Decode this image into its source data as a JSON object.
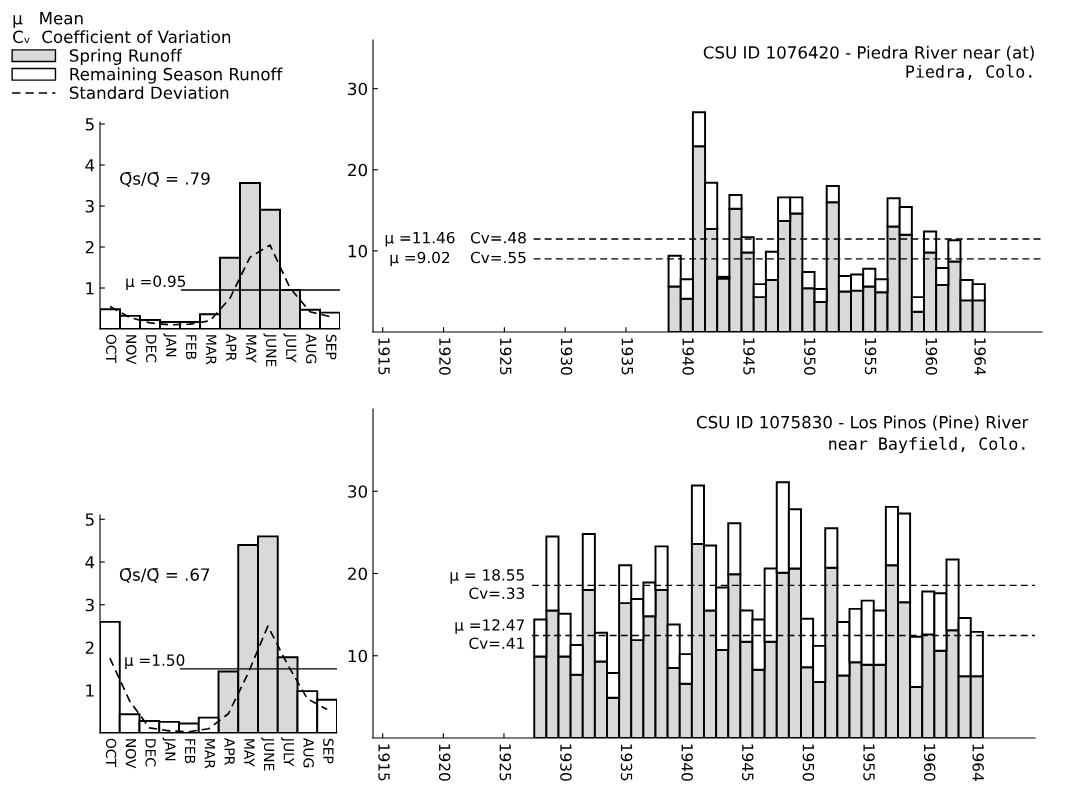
{
  "chart_data": [
    {
      "type": "bar",
      "categories": [
        "OCT",
        "NOV",
        "DEC",
        "JAN",
        "FEB",
        "MAR",
        "APR",
        "MAY",
        "JUNE",
        "JULY",
        "AUG",
        "SEP"
      ],
      "series": [
        {
          "name": "Spring Runoff",
          "color": "#d9d9d9",
          "values": [
            null,
            null,
            null,
            null,
            null,
            null,
            1.74,
            3.56,
            2.91,
            0.95,
            null,
            null
          ]
        },
        {
          "name": "Remaining Season Runoff",
          "color": "#ffffff",
          "values": [
            0.48,
            0.32,
            0.22,
            0.17,
            0.17,
            0.36,
            null,
            null,
            null,
            null,
            0.47,
            0.4
          ]
        },
        {
          "name": "Standard Deviation",
          "type": "line",
          "color": "#000000",
          "line_style": "dashed",
          "values": [
            0.55,
            0.28,
            0.15,
            0.1,
            0.12,
            0.2,
            0.75,
            1.75,
            2.05,
            1.0,
            0.42,
            0.3
          ]
        }
      ],
      "ylim": [
        0,
        5.05
      ],
      "yticks": [
        1,
        2,
        3,
        4,
        5
      ],
      "ref_lines": [
        {
          "axis": "y",
          "value": 0.95,
          "label": "μ =0.95",
          "line_style": "solid"
        }
      ],
      "annotations": [
        "Q̄s/Q̄ = .79"
      ],
      "legend": "top left",
      "legend_title": "μ   Mean\nCᵥ  Coefficient of Variation"
    },
    {
      "type": "bar",
      "stacked": true,
      "title": "CSU ID 1076420 - Piedra River near (at)",
      "subtitle": "Piedra, Colo.",
      "x": [
        1939,
        1940,
        1941,
        1942,
        1943,
        1944,
        1945,
        1946,
        1947,
        1948,
        1949,
        1950,
        1951,
        1952,
        1953,
        1954,
        1955,
        1956,
        1957,
        1958,
        1959,
        1960,
        1961,
        1962,
        1963,
        1964
      ],
      "series": [
        {
          "color": "#d9d9d9",
          "values": [
            5.6,
            4.1,
            22.9,
            12.7,
            6.6,
            15.2,
            9.8,
            4.3,
            6.4,
            13.7,
            14.6,
            5.4,
            3.7,
            16.0,
            5.0,
            5.1,
            5.6,
            4.9,
            13.0,
            12.0,
            2.5,
            9.8,
            5.8,
            8.7,
            3.9,
            3.9
          ]
        },
        {
          "color": "#ffffff",
          "values": [
            3.8,
            2.4,
            4.2,
            5.7,
            0.2,
            1.7,
            1.9,
            1.6,
            3.5,
            2.9,
            2.0,
            2.0,
            1.6,
            2.0,
            1.9,
            2.0,
            2.2,
            1.6,
            3.5,
            3.4,
            1.8,
            2.6,
            2.1,
            2.6,
            2.5,
            2.0
          ]
        }
      ],
      "xlim": [
        1914.2,
        1969.2
      ],
      "xticks": [
        1915,
        1920,
        1925,
        1930,
        1935,
        1940,
        1945,
        1950,
        1955,
        1960,
        1964
      ],
      "ylim": [
        0,
        36
      ],
      "yticks": [
        10,
        20,
        30
      ],
      "ref_lines": [
        {
          "axis": "y",
          "value": 11.46,
          "label": "μ =11.46   Cv=.48",
          "line_style": "dashed"
        },
        {
          "axis": "y",
          "value": 9.02,
          "label": "μ =9.02    Cv=.55",
          "line_style": "dashed"
        }
      ]
    },
    {
      "type": "bar",
      "categories": [
        "OCT",
        "NOV",
        "DEC",
        "JAN",
        "FEB",
        "MAR",
        "APR",
        "MAY",
        "JUNE",
        "JULY",
        "AUG",
        "SEP"
      ],
      "series": [
        {
          "color": "#d9d9d9",
          "values": [
            null,
            null,
            null,
            null,
            null,
            null,
            1.44,
            4.4,
            4.6,
            1.77,
            null,
            null
          ]
        },
        {
          "color": "#ffffff",
          "values": [
            2.6,
            0.44,
            0.28,
            0.26,
            0.22,
            0.36,
            null,
            null,
            null,
            null,
            0.98,
            0.78
          ]
        },
        {
          "type": "line",
          "color": "#000000",
          "line_style": "dashed",
          "values": [
            1.75,
            0.75,
            0.12,
            0.05,
            0.03,
            0.1,
            0.45,
            1.4,
            2.5,
            1.6,
            0.8,
            0.55
          ]
        }
      ],
      "ylim": [
        0,
        5.1
      ],
      "yticks": [
        1,
        2,
        3,
        4,
        5
      ],
      "ref_lines": [
        {
          "axis": "y",
          "value": 1.5,
          "label": "μ =1.50",
          "line_style": "solid"
        }
      ],
      "annotations": [
        "Q̄s/Q̄ = .67"
      ]
    },
    {
      "type": "bar",
      "stacked": true,
      "title": "CSU ID 1075830 - Los Pinos (Pine) River",
      "subtitle": "near Bayfield, Colo.",
      "x": [
        1928,
        1929,
        1930,
        1931,
        1932,
        1933,
        1934,
        1935,
        1936,
        1937,
        1938,
        1939,
        1940,
        1941,
        1942,
        1943,
        1944,
        1945,
        1946,
        1947,
        1948,
        1949,
        1950,
        1951,
        1952,
        1953,
        1954,
        1955,
        1956,
        1957,
        1958,
        1959,
        1960,
        1961,
        1962,
        1963,
        1964
      ],
      "series": [
        {
          "color": "#d9d9d9",
          "values": [
            9.9,
            15.5,
            9.9,
            7.7,
            18.0,
            9.3,
            4.9,
            16.4,
            11.9,
            14.8,
            18.0,
            8.5,
            6.6,
            23.6,
            15.5,
            10.7,
            19.9,
            11.7,
            8.3,
            11.7,
            20.1,
            20.6,
            8.6,
            6.8,
            20.7,
            7.6,
            9.2,
            8.9,
            8.9,
            21.0,
            16.5,
            6.2,
            12.6,
            10.6,
            13.1,
            7.5,
            7.5
          ]
        },
        {
          "color": "#ffffff",
          "values": [
            4.5,
            9.0,
            5.2,
            3.6,
            6.8,
            3.5,
            3.0,
            4.6,
            5.0,
            4.1,
            5.3,
            5.3,
            3.6,
            7.1,
            7.9,
            7.6,
            6.2,
            3.8,
            6.1,
            8.9,
            11.0,
            7.2,
            5.9,
            4.4,
            4.8,
            6.5,
            6.5,
            7.8,
            6.6,
            7.1,
            10.8,
            6.1,
            5.2,
            7.0,
            8.6,
            7.1,
            5.4
          ]
        }
      ],
      "xlim": [
        1914.2,
        1968.8
      ],
      "xticks": [
        1915,
        1920,
        1925,
        1930,
        1935,
        1940,
        1945,
        1950,
        1955,
        1960,
        1964
      ],
      "ylim": [
        0,
        40
      ],
      "yticks": [
        10,
        20,
        30
      ],
      "ref_lines": [
        {
          "axis": "y",
          "value": 18.55,
          "label": "μ = 18.55\nCv=.33",
          "line_style": "dashed"
        },
        {
          "axis": "y",
          "value": 12.47,
          "label": "μ =12.47\nCv=.41",
          "line_style": "dashed"
        }
      ]
    }
  ]
}
